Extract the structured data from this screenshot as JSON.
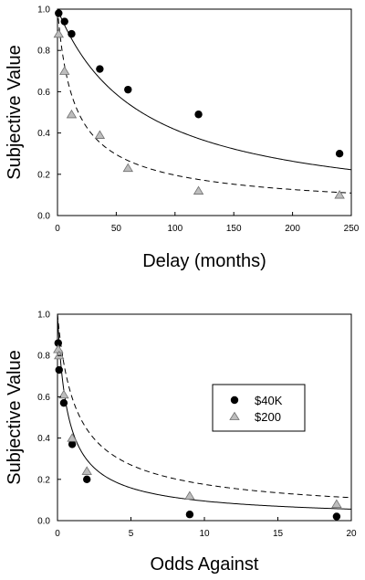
{
  "chart_data": [
    {
      "type": "scatter",
      "title": "",
      "xlabel": "Delay (months)",
      "ylabel": "Subjective Value",
      "xlim": [
        0,
        250
      ],
      "ylim": [
        0,
        1.0
      ],
      "x_ticks": [
        "0",
        "50",
        "100",
        "150",
        "200",
        "250"
      ],
      "y_ticks": [
        "0.0",
        "0.2",
        "0.4",
        "0.6",
        "0.8",
        "1.0"
      ],
      "grid": false,
      "series": [
        {
          "marker": "circle",
          "color": "#000000",
          "line_style": "solid",
          "points": [
            {
              "x": 1,
              "y": 0.98
            },
            {
              "x": 6,
              "y": 0.94
            },
            {
              "x": 12,
              "y": 0.88
            },
            {
              "x": 36,
              "y": 0.71
            },
            {
              "x": 60,
              "y": 0.61
            },
            {
              "x": 120,
              "y": 0.49
            },
            {
              "x": 240,
              "y": 0.3
            }
          ],
          "fit_curve": {
            "model": "hyperboloid",
            "k": 0.014,
            "s": 1.0
          }
        },
        {
          "marker": "triangle",
          "color": "#bdbdbd",
          "line_style": "dashed",
          "points": [
            {
              "x": 1,
              "y": 0.88
            },
            {
              "x": 6,
              "y": 0.7
            },
            {
              "x": 12,
              "y": 0.49
            },
            {
              "x": 36,
              "y": 0.39
            },
            {
              "x": 60,
              "y": 0.23
            },
            {
              "x": 120,
              "y": 0.12
            },
            {
              "x": 240,
              "y": 0.1
            }
          ],
          "fit_curve": {
            "model": "hyperboloid",
            "k": 0.1,
            "s": 0.68
          }
        }
      ]
    },
    {
      "type": "scatter",
      "title": "",
      "xlabel": "Odds Against",
      "ylabel": "Subjective Value",
      "xlim": [
        0,
        20
      ],
      "ylim": [
        0,
        1.0
      ],
      "x_ticks": [
        "0",
        "5",
        "10",
        "15",
        "20"
      ],
      "y_ticks": [
        "0.0",
        "0.2",
        "0.4",
        "0.6",
        "0.8",
        "1.0"
      ],
      "grid": false,
      "legend_position": "top-right",
      "series": [
        {
          "name": "$40K",
          "marker": "circle",
          "color": "#000000",
          "line_style": "solid",
          "points": [
            {
              "x": 0.05,
              "y": 0.86
            },
            {
              "x": 0.11,
              "y": 0.73
            },
            {
              "x": 0.43,
              "y": 0.57
            },
            {
              "x": 1.0,
              "y": 0.37
            },
            {
              "x": 2.0,
              "y": 0.2
            },
            {
              "x": 9.0,
              "y": 0.03
            },
            {
              "x": 19.0,
              "y": 0.02
            }
          ],
          "fit_curve": {
            "model": "hyperboloid",
            "k": 1.8,
            "s": 0.8
          }
        },
        {
          "name": "$200",
          "marker": "triangle",
          "color": "#bdbdbd",
          "line_style": "dashed",
          "points": [
            {
              "x": 0.05,
              "y": 0.83
            },
            {
              "x": 0.11,
              "y": 0.8
            },
            {
              "x": 0.43,
              "y": 0.61
            },
            {
              "x": 1.0,
              "y": 0.4
            },
            {
              "x": 2.0,
              "y": 0.24
            },
            {
              "x": 9.0,
              "y": 0.12
            },
            {
              "x": 19.0,
              "y": 0.08
            }
          ],
          "fit_curve": {
            "model": "hyperboloid",
            "k": 1.1,
            "s": 0.7
          }
        }
      ]
    }
  ]
}
